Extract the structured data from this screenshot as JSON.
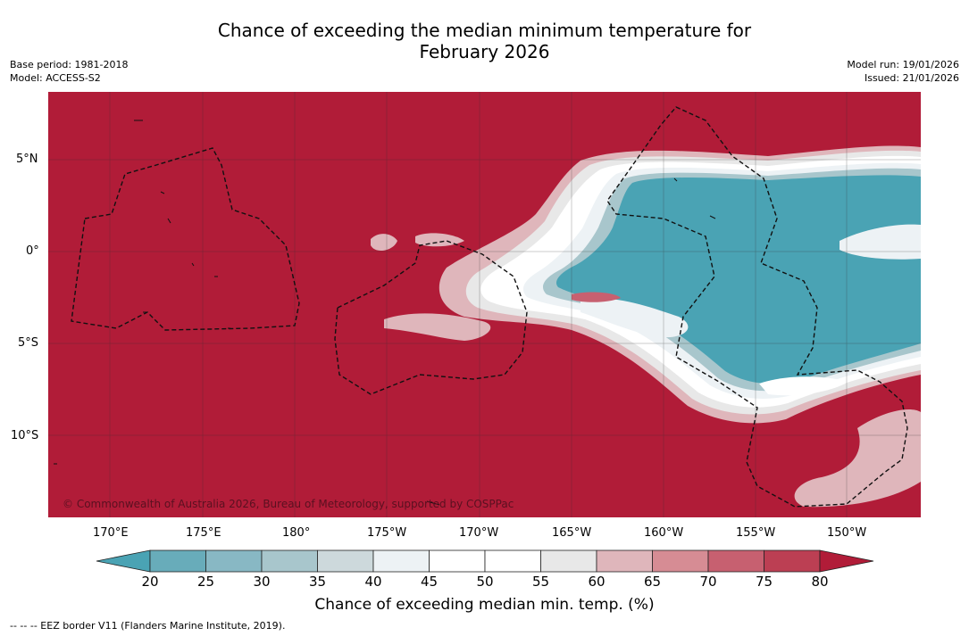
{
  "title_line1": "Chance of exceeding the median minimum temperature for",
  "title_line2": "February 2026",
  "base_period": "Base period: 1981-2018",
  "model": "Model: ACCESS-S2",
  "model_run": "Model run: 19/01/2026",
  "issued": "Issued: 21/01/2026",
  "copyright": "© Commonwealth of Australia 2026, Bureau of Meteorology, supported by COSPPac",
  "latitude_labels": [
    "5°N",
    "0°",
    "5°S",
    "10°S"
  ],
  "longitude_labels": [
    "170°E",
    "175°E",
    "180°",
    "175°W",
    "170°W",
    "165°W",
    "160°W",
    "155°W",
    "150°W"
  ],
  "colorbar": {
    "ticks": [
      "20",
      "25",
      "30",
      "35",
      "40",
      "45",
      "50",
      "55",
      "60",
      "65",
      "70",
      "75",
      "80"
    ],
    "label": "Chance of exceeding median min. temp. (%)",
    "colors": {
      "below": "#4aa3b4",
      "c20_25": "#68acba",
      "c25_30": "#88b8c4",
      "c30_35": "#a8c6cc",
      "c35_40": "#cdd9dc",
      "c40_45": "#edf2f5",
      "c45_50": "#ffffff",
      "c50_55": "#ffffff",
      "c55_60": "#e8e8e8",
      "c60_65": "#dfb6bb",
      "c65_70": "#d68c94",
      "c70_75": "#c76070",
      "c75_80": "#bc3f53",
      "above": "#b11c38"
    }
  },
  "footnote": "--  --  -- EEZ border V11 (Flanders Marine Institute, 2019)."
}
